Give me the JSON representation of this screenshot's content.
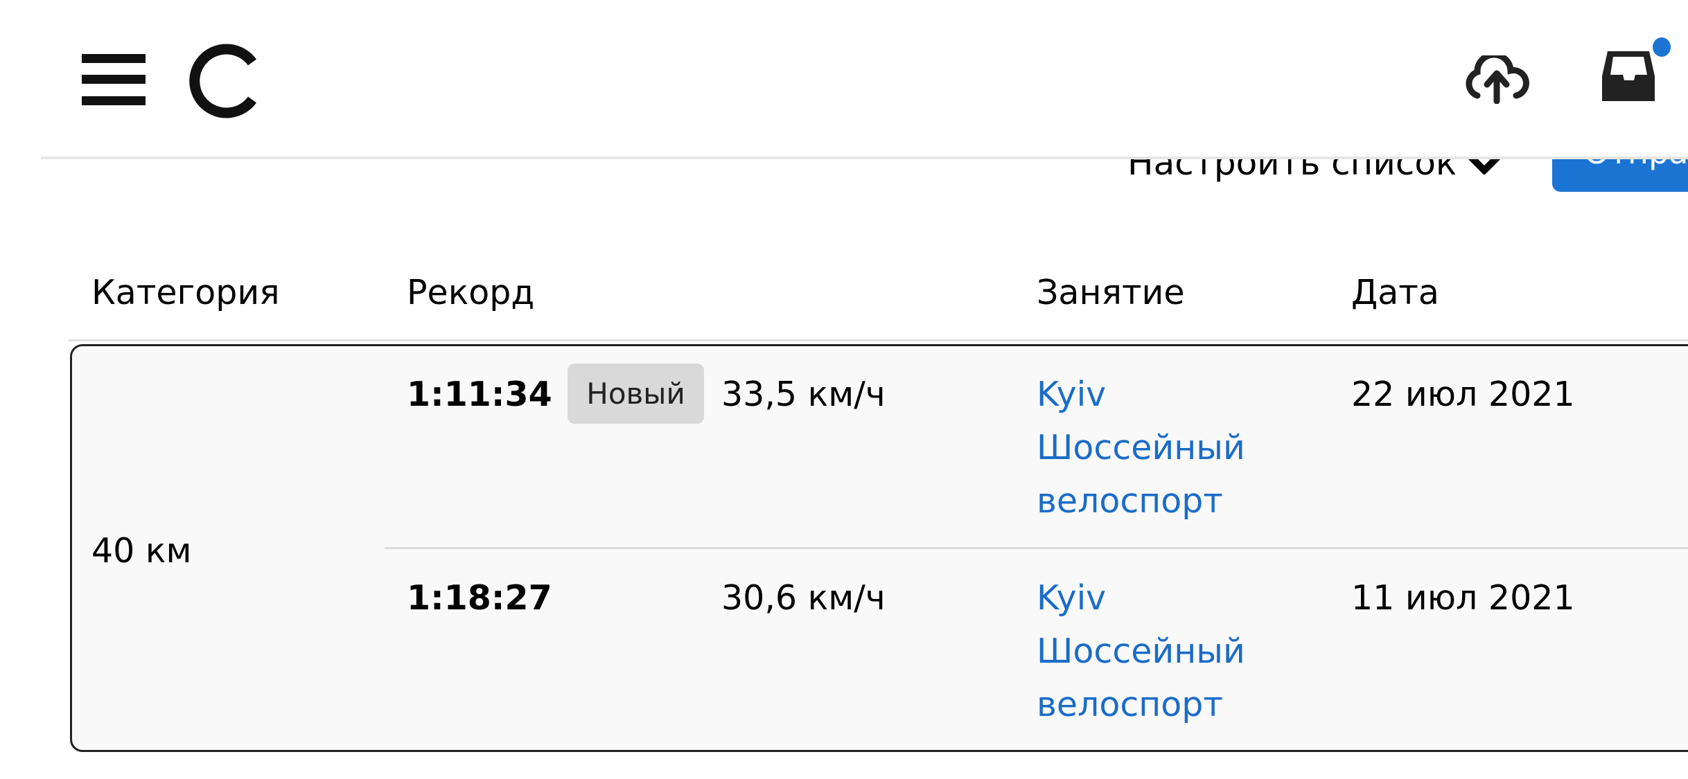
{
  "header": {
    "menu_icon": "hamburger-icon",
    "logo_icon": "brand-logo-c",
    "upload_icon": "cloud-upload-icon",
    "inbox_icon": "inbox-icon",
    "notification_color": "#1b74d2"
  },
  "toolbar": {
    "customize_label": "Настроить список",
    "send_label": "Отправ"
  },
  "table": {
    "columns": [
      "Категория",
      "Рекорд",
      "Занятие",
      "Дата"
    ],
    "groups": [
      {
        "category": "40 км",
        "rows": [
          {
            "time": "1:11:34",
            "badge": "Новый",
            "speed": "33,5 км/ч",
            "activity_line1": "Kyiv",
            "activity_line2": "Шоссейный",
            "activity_line3": "велоспорт",
            "date": "22 июл 2021"
          },
          {
            "time": "1:18:27",
            "badge": "",
            "speed": "30,6 км/ч",
            "activity_line1": "Kyiv",
            "activity_line2": "Шоссейный",
            "activity_line3": "велоспорт",
            "date": "11 июл 2021"
          }
        ]
      }
    ]
  },
  "colors": {
    "accent": "#1b74d2",
    "link": "#1a6cc8",
    "badge_bg": "#d9d9d9"
  }
}
